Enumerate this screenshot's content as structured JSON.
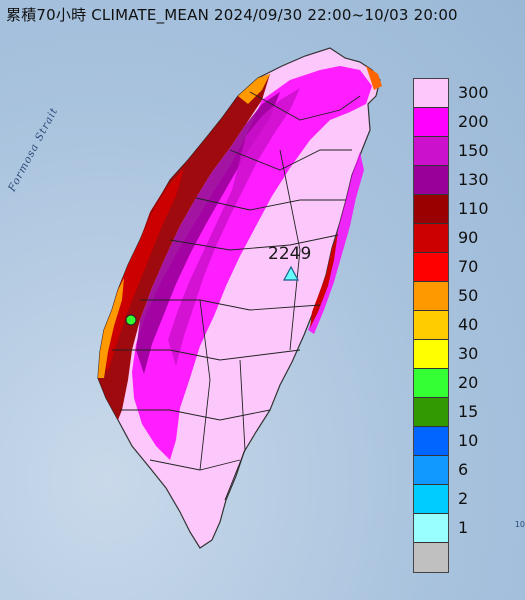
{
  "title": "累積70小時 CLIMATE_MEAN 2024/09/30 22:00~10/03 20:00",
  "strait_label": "Formosa Strait",
  "max_station": {
    "value": "2249",
    "marker": "triangle-icon"
  },
  "edge_note": "10",
  "legend": {
    "levels": [
      {
        "label": "300",
        "color": "#fcc8fc"
      },
      {
        "label": "200",
        "color": "#ff00ff"
      },
      {
        "label": "150",
        "color": "#cc11cc"
      },
      {
        "label": "130",
        "color": "#990099"
      },
      {
        "label": "110",
        "color": "#990000"
      },
      {
        "label": "90",
        "color": "#cc0000"
      },
      {
        "label": "70",
        "color": "#ff0000"
      },
      {
        "label": "50",
        "color": "#ff9900"
      },
      {
        "label": "40",
        "color": "#ffcc00"
      },
      {
        "label": "30",
        "color": "#ffff00"
      },
      {
        "label": "20",
        "color": "#33ff33"
      },
      {
        "label": "15",
        "color": "#339900"
      },
      {
        "label": "10",
        "color": "#0066ff"
      },
      {
        "label": "6",
        "color": "#1199ff"
      },
      {
        "label": "2",
        "color": "#00ccff"
      },
      {
        "label": "1",
        "color": "#99ffff"
      },
      {
        "label": "",
        "color": "#c0c0c0"
      }
    ]
  }
}
